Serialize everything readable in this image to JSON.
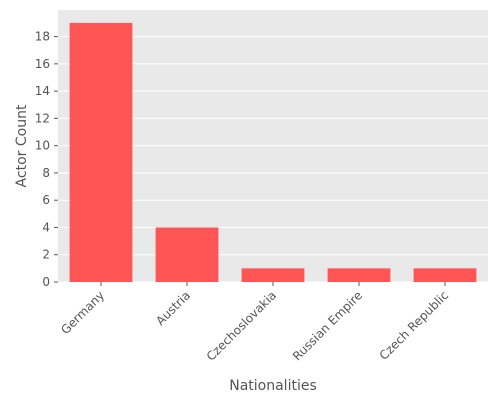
{
  "chart_data": {
    "type": "bar",
    "title": "",
    "xlabel": "Nationalities",
    "ylabel": "Actor Count",
    "categories": [
      "Germany",
      "Austria",
      "Czechoslovakia",
      "Russian Empire",
      "Czech Republic"
    ],
    "values": [
      19,
      4,
      1,
      1,
      1
    ],
    "ylim": [
      0,
      19.95
    ],
    "yticks": [
      0,
      2,
      4,
      6,
      8,
      10,
      12,
      14,
      16,
      18
    ],
    "grid": true,
    "legend": "none",
    "colors": {
      "bar": "#ff5555",
      "background": "#e9e9e9",
      "grid": "#ffffff",
      "text": "#555555"
    }
  }
}
